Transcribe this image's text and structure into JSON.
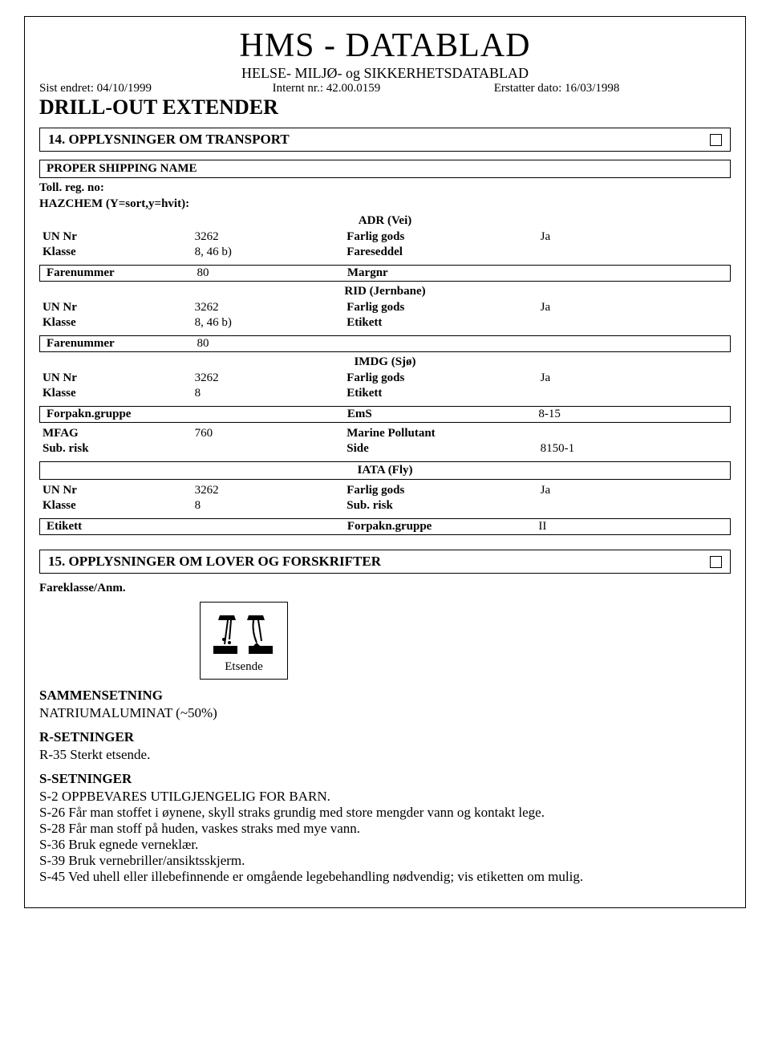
{
  "header": {
    "title": "HMS - DATABLAD",
    "subtitle": "HELSE- MILJØ- og SIKKERHETSDATABLAD",
    "last_changed_label": "Sist endret:",
    "last_changed": "04/10/1999",
    "internal_label": "Internt nr.:",
    "internal": "42.00.0159",
    "replaces_label": "Erstatter dato:",
    "replaces": "16/03/1998",
    "product": "DRILL-OUT EXTENDER"
  },
  "section14": {
    "heading": "14. OPPLYSNINGER OM TRANSPORT",
    "shipping_name": "PROPER SHIPPING NAME",
    "toll_reg_label": "Toll. reg. no:",
    "hazchem_label": "HAZCHEM (Y=sort,y=hvit):",
    "adr": {
      "title": "ADR (Vei)",
      "un_label": "UN Nr",
      "un": "3262",
      "fg_label": "Farlig gods",
      "fg": "Ja",
      "klasse_label": "Klasse",
      "klasse": "8, 46 b)",
      "seddel_label": "Fareseddel",
      "seddel": "",
      "farenr_label": "Farenummer",
      "farenr": "80",
      "margnr_label": "Margnr",
      "margnr": ""
    },
    "rid": {
      "title": "RID (Jernbane)",
      "un_label": "UN Nr",
      "un": "3262",
      "fg_label": "Farlig gods",
      "fg": "Ja",
      "klasse_label": "Klasse",
      "klasse": "8, 46 b)",
      "etikett_label": "Etikett",
      "etikett": "",
      "farenr_label": "Farenummer",
      "farenr": "80"
    },
    "imdg": {
      "title": "IMDG (Sjø)",
      "un_label": "UN Nr",
      "un": "3262",
      "fg_label": "Farlig gods",
      "fg": "Ja",
      "klasse_label": "Klasse",
      "klasse": "8",
      "etikett_label": "Etikett",
      "etikett": "",
      "forpakn_label": "Forpakn.gruppe",
      "forpakn": "",
      "ems_label": "EmS",
      "ems": "8-15",
      "mfag_label": "MFAG",
      "mfag": "760",
      "marine_label": "Marine Pollutant",
      "marine": "",
      "subrisk_label": "Sub. risk",
      "subrisk": "",
      "side_label": "Side",
      "side": "8150-1"
    },
    "iata": {
      "title": "IATA (Fly)",
      "un_label": "UN Nr",
      "un": "3262",
      "fg_label": "Farlig gods",
      "fg": "Ja",
      "klasse_label": "Klasse",
      "klasse": "8",
      "subrisk_label": "Sub. risk",
      "subrisk": "",
      "etikett_label": "Etikett",
      "etikett": "",
      "forpakn_label": "Forpakn.gruppe",
      "forpakn": "II"
    }
  },
  "section15": {
    "heading": "15. OPPLYSNINGER OM LOVER OG FORSKRIFTER",
    "fareklasse_label": "Fareklasse/Anm.",
    "hazard_caption": "Etsende",
    "sammen_head": "SAMMENSETNING",
    "sammen_body": " NATRIUMALUMINAT (~50%)",
    "r_head": "R-SETNINGER",
    "r_lines": [
      "R-35   Sterkt etsende."
    ],
    "s_head": "S-SETNINGER",
    "s_lines": [
      "S-2   OPPBEVARES UTILGJENGELIG FOR BARN.",
      "S-26  Får man stoffet i øynene, skyll straks grundig med store mengder vann og kontakt lege.",
      "S-28  Får man stoff på huden, vaskes straks med mye vann.",
      "S-36   Bruk egnede verneklær.",
      "S-39   Bruk vernebriller/ansiktsskjerm.",
      "S-45  Ved uhell eller illebefinnende er omgående legebehandling nødvendig; vis etiketten om mulig."
    ]
  },
  "style": {
    "border_color": "#000000",
    "background": "#ffffff",
    "title_fontsize": 42,
    "body_fontsize": 17
  }
}
